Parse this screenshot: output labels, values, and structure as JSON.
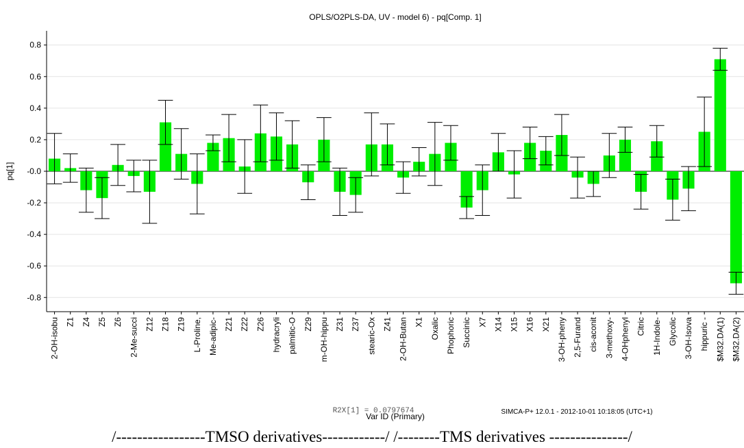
{
  "chart_data": {
    "type": "bar",
    "title": "OPLS/O2PLS-DA, UV  - model 6) -  pq[Comp. 1]",
    "y_label": "pq[1]",
    "x_label": "Var ID (Primary)",
    "categories": [
      "2-OH-isobu",
      "Z1",
      "Z4",
      "Z5",
      "Z6",
      "2-Me-succi",
      "Z12",
      "Z18",
      "Z19",
      "L-Proline,",
      "Me-adipic-",
      "Z21",
      "Z22",
      "Z26",
      "hydracryli",
      "palmitic-O",
      "Z29",
      "m-OH-hippu",
      "Z31",
      "Z37",
      "stearic-Ox",
      "Z41",
      "2-OH-Butan",
      "X1",
      "Oxalic",
      "Phophoric",
      "Succinic",
      "X7",
      "X14",
      "X15",
      "X16",
      "X21",
      "3-OH-pheny",
      "2,5-Furand",
      "cis-aconit",
      "3-methoxy-",
      "4-OHphenyl",
      "Citric",
      "1H-Indole-",
      "Glycolic",
      "3-OH-Isova",
      "hippuric -",
      "$M32.DA(1)",
      "$M32.DA(2)"
    ],
    "values": [
      0.08,
      0.02,
      -0.12,
      -0.17,
      0.04,
      -0.03,
      -0.13,
      0.31,
      0.11,
      -0.08,
      0.18,
      0.21,
      0.03,
      0.24,
      0.22,
      0.17,
      -0.07,
      0.2,
      -0.13,
      -0.15,
      0.17,
      0.17,
      -0.04,
      0.06,
      0.11,
      0.18,
      -0.23,
      -0.12,
      0.12,
      -0.02,
      0.18,
      0.13,
      0.23,
      -0.04,
      -0.08,
      0.1,
      0.2,
      -0.13,
      0.19,
      -0.18,
      -0.11,
      0.25,
      0.71,
      -0.71
    ],
    "errors": [
      0.16,
      0.09,
      0.14,
      0.13,
      0.13,
      0.1,
      0.2,
      0.14,
      0.16,
      0.19,
      0.05,
      0.15,
      0.17,
      0.18,
      0.15,
      0.15,
      0.11,
      0.14,
      0.15,
      0.11,
      0.2,
      0.13,
      0.1,
      0.09,
      0.2,
      0.11,
      0.07,
      0.16,
      0.12,
      0.15,
      0.1,
      0.09,
      0.13,
      0.13,
      0.08,
      0.14,
      0.08,
      0.11,
      0.1,
      0.13,
      0.14,
      0.22,
      0.07,
      0.07
    ],
    "color": "#00ee00",
    "ylim": [
      -0.89,
      0.89
    ],
    "yticks": [
      -0.8,
      -0.6,
      -0.4,
      -0.2,
      {
        "value": 0,
        "label": "-0.0"
      },
      0.2,
      0.4,
      0.6,
      0.8
    ],
    "grid": true,
    "annotations": [
      "R2X[1] = 0.0797674",
      "SIMCA-P+ 12.0.1 - 2012-10-01 10:18:05 (UTC+1)",
      "/-----------------TMSO derivatives------------/ /--------TMS derivatives ---------------/"
    ]
  }
}
